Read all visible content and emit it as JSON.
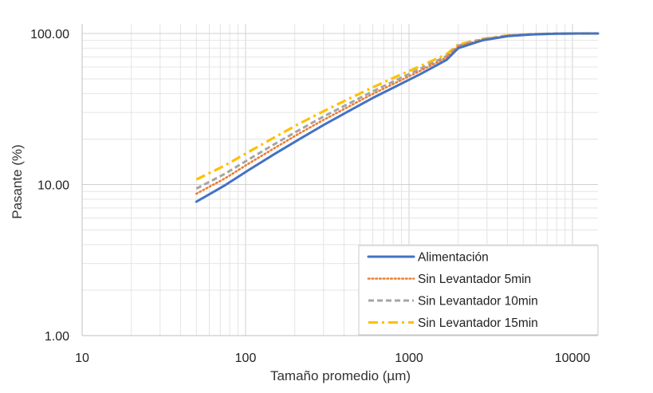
{
  "chart_data": {
    "type": "line",
    "title": "",
    "xlabel": "Tamaño promedio (µm)",
    "ylabel": "Pasante (%)",
    "x_scale": "log",
    "y_scale": "log",
    "xlim": [
      10,
      15000
    ],
    "ylim": [
      1,
      120
    ],
    "x_ticks": [
      {
        "value": 10,
        "label": "10"
      },
      {
        "value": 100,
        "label": "100"
      },
      {
        "value": 1000,
        "label": "1000"
      },
      {
        "value": 10000,
        "label": "10000"
      }
    ],
    "y_ticks": [
      {
        "value": 1,
        "label": "1.00"
      },
      {
        "value": 10,
        "label": "10.00"
      },
      {
        "value": 100,
        "label": "100.00"
      }
    ],
    "grid": true,
    "legend_position": "bottom-right",
    "series": [
      {
        "name": "Alimentación",
        "color": "#4472c4",
        "dash": "solid",
        "x": [
          50,
          75,
          106,
          150,
          212,
          300,
          425,
          600,
          850,
          1180,
          1700,
          2000,
          2800,
          4000,
          5600,
          8000,
          11000,
          15000
        ],
        "y": [
          7.7,
          9.9,
          12.6,
          15.9,
          19.9,
          24.8,
          30.5,
          37.4,
          45.2,
          54.0,
          67.0,
          80.0,
          90.0,
          96.0,
          98.5,
          99.6,
          100,
          100
        ]
      },
      {
        "name": "Sin Levantador 5min",
        "color": "#ed7d31",
        "dash": "dotted",
        "x": [
          50,
          75,
          106,
          150,
          212,
          300,
          425,
          600,
          850,
          1180,
          1700,
          2000,
          2800,
          4000,
          5600,
          8000,
          11000,
          15000
        ],
        "y": [
          8.7,
          11.0,
          13.9,
          17.4,
          21.7,
          26.8,
          32.7,
          39.8,
          47.8,
          56.8,
          69.5,
          82.0,
          91.0,
          96.5,
          98.8,
          99.7,
          100,
          100
        ]
      },
      {
        "name": "Sin Levantador 10min",
        "color": "#a5a5a5",
        "dash": "dashed",
        "x": [
          50,
          75,
          106,
          150,
          212,
          300,
          425,
          600,
          850,
          1180,
          1700,
          2000,
          2800,
          4000,
          5600,
          8000,
          11000,
          15000
        ],
        "y": [
          9.4,
          11.8,
          14.8,
          18.5,
          22.9,
          28.2,
          34.2,
          41.4,
          49.6,
          58.6,
          71.0,
          83.0,
          91.5,
          96.8,
          98.9,
          99.7,
          100,
          100
        ]
      },
      {
        "name": "Sin Levantador 15min",
        "color": "#ffc000",
        "dash": "dashdot",
        "x": [
          50,
          75,
          106,
          150,
          212,
          300,
          425,
          600,
          850,
          1180,
          1700,
          2000,
          2800,
          4000,
          5600,
          8000,
          11000,
          15000
        ],
        "y": [
          10.8,
          13.4,
          16.6,
          20.5,
          25.2,
          30.6,
          36.8,
          44.0,
          52.2,
          61.0,
          73.0,
          84.5,
          92.0,
          97.0,
          99.0,
          99.8,
          100,
          100
        ]
      }
    ]
  }
}
